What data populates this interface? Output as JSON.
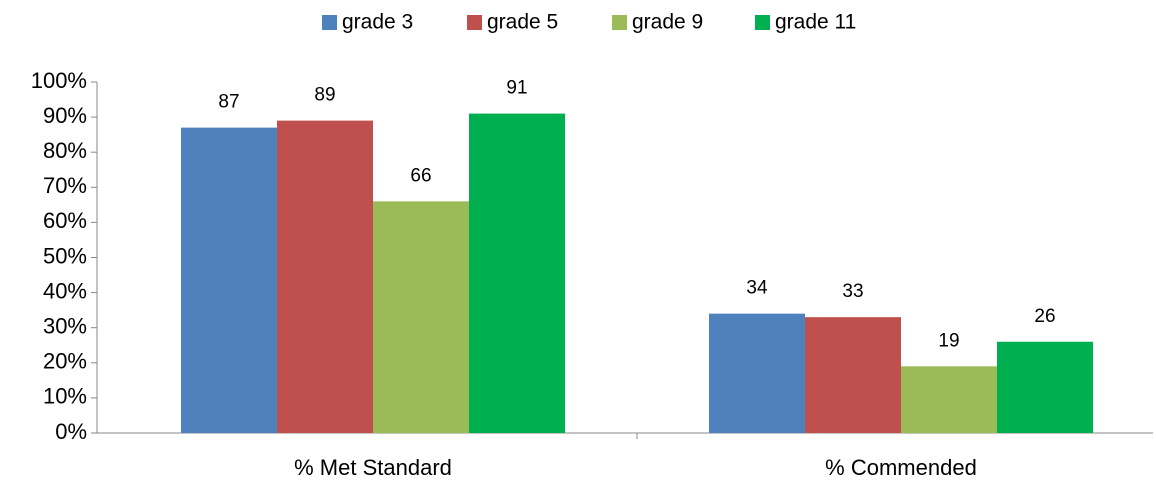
{
  "chart_data": {
    "type": "bar",
    "categories": [
      "% Met Standard",
      "% Commended"
    ],
    "series": [
      {
        "name": "grade 3",
        "color": "#4f81bd",
        "values": [
          87,
          34
        ]
      },
      {
        "name": "grade 5",
        "color": "#c0504d",
        "values": [
          89,
          33
        ]
      },
      {
        "name": "grade 9",
        "color": "#9bbb59",
        "values": [
          66,
          19
        ]
      },
      {
        "name": "grade 11",
        "color": "#00b050",
        "values": [
          91,
          26
        ]
      }
    ],
    "ylim": [
      0,
      100
    ],
    "yticks": [
      {
        "value": 0,
        "label": "0%"
      },
      {
        "value": 10,
        "label": "10%"
      },
      {
        "value": 20,
        "label": "20%"
      },
      {
        "value": 30,
        "label": "30%"
      },
      {
        "value": 40,
        "label": "40%"
      },
      {
        "value": 50,
        "label": "50%"
      },
      {
        "value": 60,
        "label": "60%"
      },
      {
        "value": 70,
        "label": "70%"
      },
      {
        "value": 80,
        "label": "80%"
      },
      {
        "value": 90,
        "label": "90%"
      },
      {
        "value": 100,
        "label": "100%"
      }
    ],
    "legend": "top",
    "grid": false
  }
}
